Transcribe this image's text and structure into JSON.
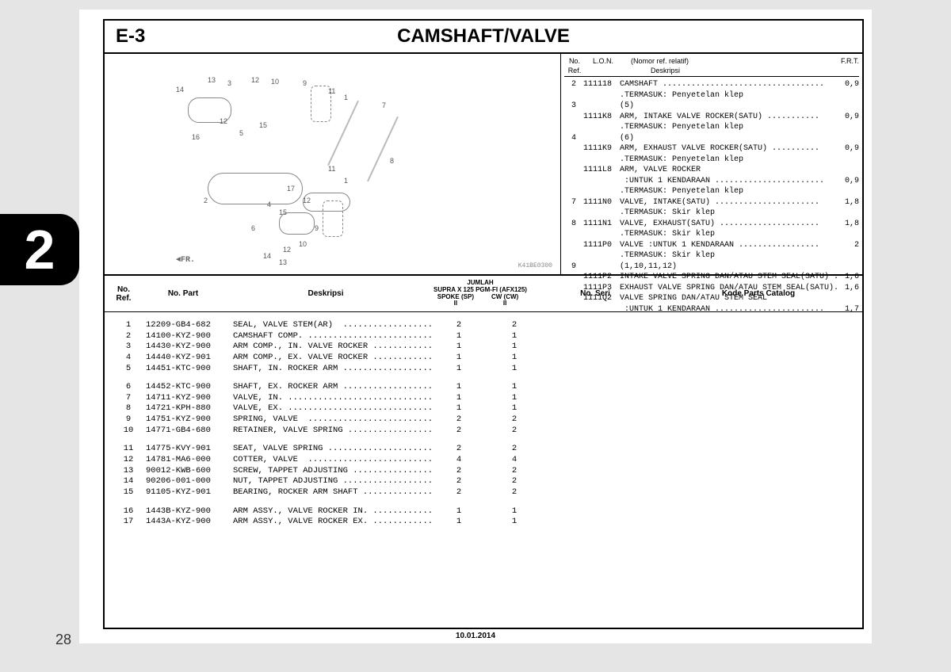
{
  "tabNumber": "2",
  "pageNumber": "28",
  "header": {
    "code": "E-3",
    "title": "CAMSHAFT/VALVE"
  },
  "diagram": {
    "refCode": "K41BE0300",
    "frLabel": "FR.",
    "nums": [
      "1",
      "2",
      "3",
      "4",
      "5",
      "6",
      "7",
      "8",
      "9",
      "10",
      "11",
      "12",
      "13",
      "14",
      "15",
      "16",
      "17"
    ]
  },
  "sideHeader": {
    "ref": "No.\nRef.",
    "lon": "L.O.N.",
    "norref": "(Nomor ref. relatif)",
    "desc": "Deskripsi",
    "frt": "F.R.T."
  },
  "sideRows": [
    {
      "ref": "2",
      "lon": "111118",
      "desc": "CAMSHAFT ..................................",
      "frt": "0,9"
    },
    {
      "ref": "",
      "lon": "",
      "desc": ".TERMASUK: Penyetelan klep",
      "frt": ""
    },
    {
      "ref": "3",
      "lon": "",
      "desc": "(5)",
      "frt": ""
    },
    {
      "ref": "",
      "lon": "1111K8",
      "desc": "ARM, INTAKE VALVE ROCKER(SATU) ...........",
      "frt": "0,9"
    },
    {
      "ref": "",
      "lon": "",
      "desc": ".TERMASUK: Penyetelan klep",
      "frt": ""
    },
    {
      "ref": "4",
      "lon": "",
      "desc": "(6)",
      "frt": ""
    },
    {
      "ref": "",
      "lon": "1111K9",
      "desc": "ARM, EXHAUST VALVE ROCKER(SATU) ..........",
      "frt": "0,9"
    },
    {
      "ref": "",
      "lon": "",
      "desc": ".TERMASUK: Penyetelan klep",
      "frt": ""
    },
    {
      "ref": "",
      "lon": "1111L8",
      "desc": "ARM, VALVE ROCKER",
      "frt": ""
    },
    {
      "ref": "",
      "lon": "",
      "desc": " :UNTUK 1 KENDARAAN .......................",
      "frt": "0,9"
    },
    {
      "ref": "",
      "lon": "",
      "desc": ".TERMASUK: Penyetelan klep",
      "frt": ""
    },
    {
      "ref": "7",
      "lon": "1111N0",
      "desc": "VALVE, INTAKE(SATU) ......................",
      "frt": "1,8"
    },
    {
      "ref": "",
      "lon": "",
      "desc": ".TERMASUK: Skir klep",
      "frt": ""
    },
    {
      "ref": "8",
      "lon": "1111N1",
      "desc": "VALVE, EXHAUST(SATU) .....................",
      "frt": "1,8"
    },
    {
      "ref": "",
      "lon": "",
      "desc": ".TERMASUK: Skir klep",
      "frt": ""
    },
    {
      "ref": "",
      "lon": "1111P0",
      "desc": "VALVE :UNTUK 1 KENDARAAN .................",
      "frt": "2"
    },
    {
      "ref": "",
      "lon": "",
      "desc": ".TERMASUK: Skir klep",
      "frt": ""
    },
    {
      "ref": "9",
      "lon": "",
      "desc": "(1,10,11,12)",
      "frt": ""
    },
    {
      "ref": "",
      "lon": "1111P2",
      "desc": "INTAKE VALVE SPRING DAN/ATAU STEM SEAL(SATU) .",
      "frt": "1,6"
    },
    {
      "ref": "",
      "lon": "1111P3",
      "desc": "EXHAUST VALVE SPRING DAN/ATAU STEM SEAL(SATU).",
      "frt": "1,6"
    },
    {
      "ref": "",
      "lon": "1111Q2",
      "desc": "VALVE SPRING DAN/ATAU STEM SEAL",
      "frt": ""
    },
    {
      "ref": "",
      "lon": "",
      "desc": " :UNTUK 1 KENDARAAN .......................",
      "frt": "1,7"
    }
  ],
  "partsHeader": {
    "ref": "No.\nRef.",
    "part": "No. Part",
    "desc": "Deskripsi",
    "jumlahTitle": "JUMLAH",
    "jumlahModel": "SUPRA X 125 PGM-FI (AFX125)",
    "jumlahCol1": "SPOKE (SP)",
    "jumlahCol2": "CW (CW)",
    "jumlahSub": "II",
    "seri": "No. Seri",
    "kode": "Kode Parts Catalog"
  },
  "partsRows": [
    {
      "ref": "1",
      "part": "12209-GB4-682",
      "desc": "SEAL, VALVE STEM(AR)  ......................",
      "q1": "2",
      "q2": "2"
    },
    {
      "ref": "2",
      "part": "14100-KYZ-900",
      "desc": "CAMSHAFT COMP. .............................",
      "q1": "1",
      "q2": "1"
    },
    {
      "ref": "3",
      "part": "14430-KYZ-900",
      "desc": "ARM COMP., IN. VALVE ROCKER ...............",
      "q1": "1",
      "q2": "1"
    },
    {
      "ref": "4",
      "part": "14440-KYZ-901",
      "desc": "ARM COMP., EX. VALVE ROCKER ...............",
      "q1": "1",
      "q2": "1"
    },
    {
      "ref": "5",
      "part": "14451-KTC-900",
      "desc": "SHAFT, IN. ROCKER ARM ......................",
      "q1": "1",
      "q2": "1"
    },
    {
      "ref": "6",
      "part": "14452-KTC-900",
      "desc": "SHAFT, EX. ROCKER ARM ......................",
      "q1": "1",
      "q2": "1",
      "gap": true
    },
    {
      "ref": "7",
      "part": "14711-KYZ-900",
      "desc": "VALVE, IN. .................................",
      "q1": "1",
      "q2": "1"
    },
    {
      "ref": "8",
      "part": "14721-KPH-880",
      "desc": "VALVE, EX. .................................",
      "q1": "1",
      "q2": "1"
    },
    {
      "ref": "9",
      "part": "14751-KYZ-900",
      "desc": "SPRING, VALVE  .............................",
      "q1": "2",
      "q2": "2"
    },
    {
      "ref": "10",
      "part": "14771-GB4-680",
      "desc": "RETAINER, VALVE SPRING ....................",
      "q1": "2",
      "q2": "2"
    },
    {
      "ref": "11",
      "part": "14775-KVY-901",
      "desc": "SEAT, VALVE SPRING ........................",
      "q1": "2",
      "q2": "2",
      "gap": true
    },
    {
      "ref": "12",
      "part": "14781-MA6-000",
      "desc": "COTTER, VALVE  ............................",
      "q1": "4",
      "q2": "4"
    },
    {
      "ref": "13",
      "part": "90012-KWB-600",
      "desc": "SCREW, TAPPET ADJUSTING ...................",
      "q1": "2",
      "q2": "2"
    },
    {
      "ref": "14",
      "part": "90206-001-000",
      "desc": "NUT, TAPPET ADJUSTING .....................",
      "q1": "2",
      "q2": "2"
    },
    {
      "ref": "15",
      "part": "91105-KYZ-901",
      "desc": "BEARING, ROCKER ARM SHAFT .................",
      "q1": "2",
      "q2": "2"
    },
    {
      "ref": "16",
      "part": "1443B-KYZ-900",
      "desc": "ARM ASSY., VALVE ROCKER IN. ...............",
      "q1": "1",
      "q2": "1",
      "gap": true
    },
    {
      "ref": "17",
      "part": "1443A-KYZ-900",
      "desc": "ARM ASSY., VALVE ROCKER EX. ...............",
      "q1": "1",
      "q2": "1"
    }
  ],
  "footerDate": "10.01.2014"
}
